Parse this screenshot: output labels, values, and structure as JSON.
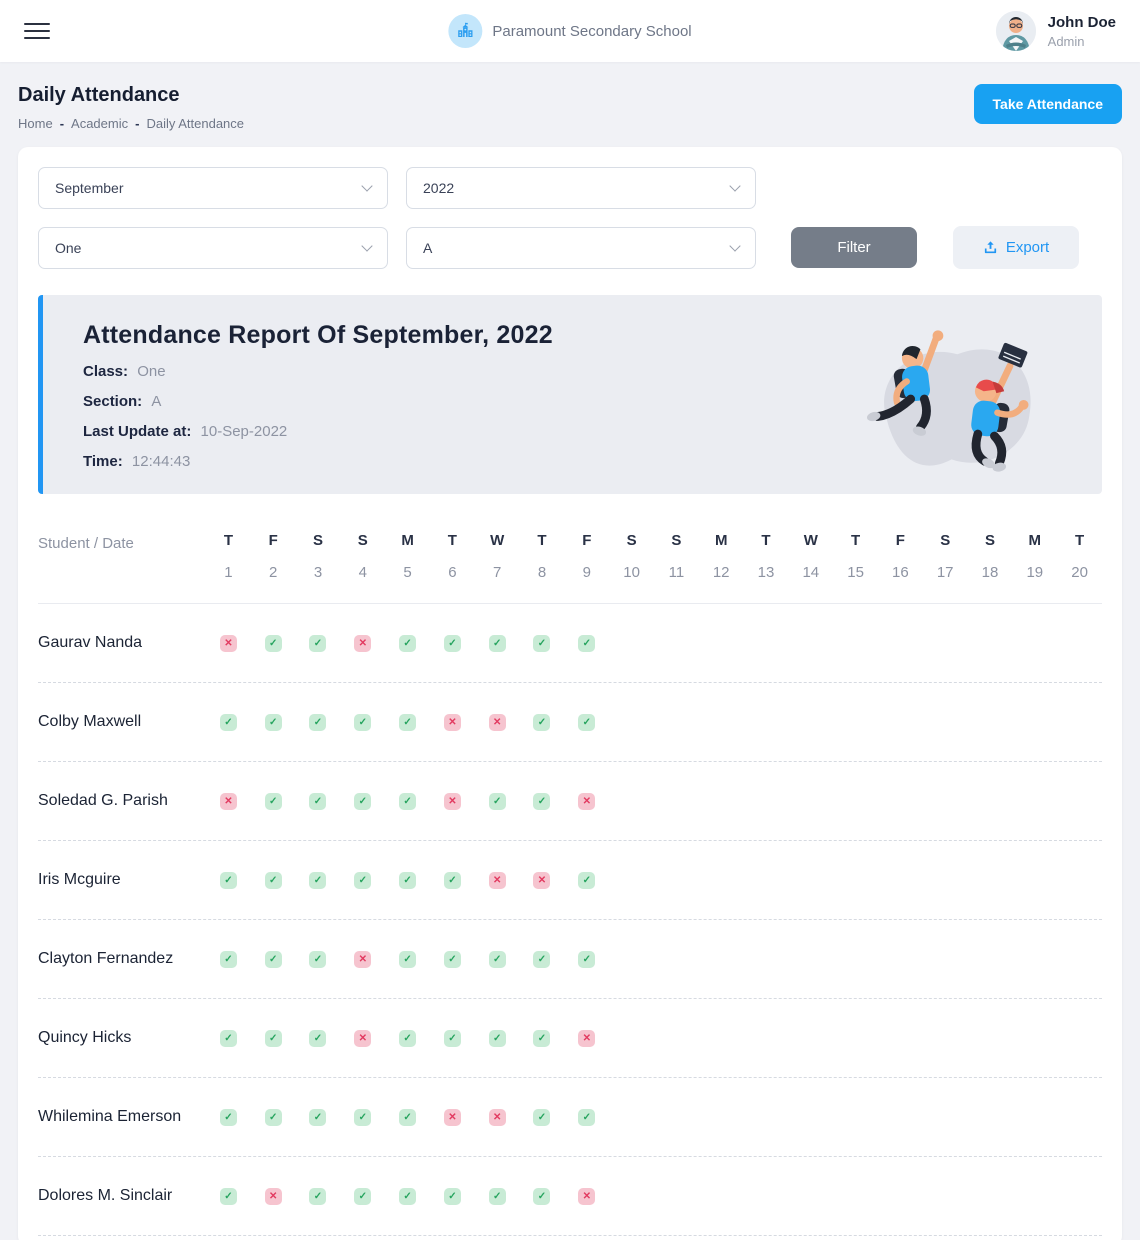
{
  "header": {
    "school_name": "Paramount Secondary School",
    "user": {
      "name": "John Doe",
      "role": "Admin"
    }
  },
  "page": {
    "title": "Daily Attendance",
    "breadcrumb": [
      "Home",
      "Academic",
      "Daily Attendance"
    ],
    "breadcrumb_separator": "-",
    "take_attendance_label": "Take Attendance"
  },
  "filters": {
    "month": "September",
    "year": "2022",
    "class": "One",
    "section": "A",
    "filter_label": "Filter",
    "export_label": "Export"
  },
  "report": {
    "title": "Attendance Report Of September, 2022",
    "class_label": "Class:",
    "class_value": "One",
    "section_label": "Section:",
    "section_value": "A",
    "last_update_label": "Last Update at:",
    "last_update_value": "10-Sep-2022",
    "time_label": "Time:",
    "time_value": "12:44:43"
  },
  "table": {
    "corner_label": "Student / Date",
    "present_glyph": "✓",
    "absent_glyph": "✕",
    "days": [
      {
        "letter": "T",
        "date": "1"
      },
      {
        "letter": "F",
        "date": "2"
      },
      {
        "letter": "S",
        "date": "3"
      },
      {
        "letter": "S",
        "date": "4"
      },
      {
        "letter": "M",
        "date": "5"
      },
      {
        "letter": "T",
        "date": "6"
      },
      {
        "letter": "W",
        "date": "7"
      },
      {
        "letter": "T",
        "date": "8"
      },
      {
        "letter": "F",
        "date": "9"
      },
      {
        "letter": "S",
        "date": "10"
      },
      {
        "letter": "S",
        "date": "11"
      },
      {
        "letter": "M",
        "date": "12"
      },
      {
        "letter": "T",
        "date": "13"
      },
      {
        "letter": "W",
        "date": "14"
      },
      {
        "letter": "T",
        "date": "15"
      },
      {
        "letter": "F",
        "date": "16"
      },
      {
        "letter": "S",
        "date": "17"
      },
      {
        "letter": "S",
        "date": "18"
      },
      {
        "letter": "M",
        "date": "19"
      },
      {
        "letter": "T",
        "date": "20"
      }
    ],
    "students": [
      {
        "name": "Gaurav Nanda",
        "marks": [
          "A",
          "P",
          "P",
          "A",
          "P",
          "P",
          "P",
          "P",
          "P"
        ]
      },
      {
        "name": "Colby Maxwell",
        "marks": [
          "P",
          "P",
          "P",
          "P",
          "P",
          "A",
          "A",
          "P",
          "P"
        ]
      },
      {
        "name": "Soledad G. Parish",
        "marks": [
          "A",
          "P",
          "P",
          "P",
          "P",
          "A",
          "P",
          "P",
          "A"
        ]
      },
      {
        "name": "Iris Mcguire",
        "marks": [
          "P",
          "P",
          "P",
          "P",
          "P",
          "P",
          "A",
          "A",
          "P"
        ]
      },
      {
        "name": "Clayton Fernandez",
        "marks": [
          "P",
          "P",
          "P",
          "A",
          "P",
          "P",
          "P",
          "P",
          "P"
        ]
      },
      {
        "name": "Quincy Hicks",
        "marks": [
          "P",
          "P",
          "P",
          "A",
          "P",
          "P",
          "P",
          "P",
          "A"
        ]
      },
      {
        "name": "Whilemina Emerson",
        "marks": [
          "P",
          "P",
          "P",
          "P",
          "P",
          "A",
          "A",
          "P",
          "P"
        ]
      },
      {
        "name": "Dolores M. Sinclair",
        "marks": [
          "P",
          "A",
          "P",
          "P",
          "P",
          "P",
          "P",
          "P",
          "A"
        ]
      }
    ]
  },
  "colors": {
    "accent_blue": "#18a1f2",
    "filter_gray": "#757d89",
    "export_bg": "#edf0f5",
    "banner_bg": "#ebedf2",
    "banner_border": "#2196f3",
    "present_bg": "#c8ebd5",
    "present_fg": "#27a45f",
    "absent_bg": "#f6c4cf",
    "absent_fg": "#e23a60"
  }
}
